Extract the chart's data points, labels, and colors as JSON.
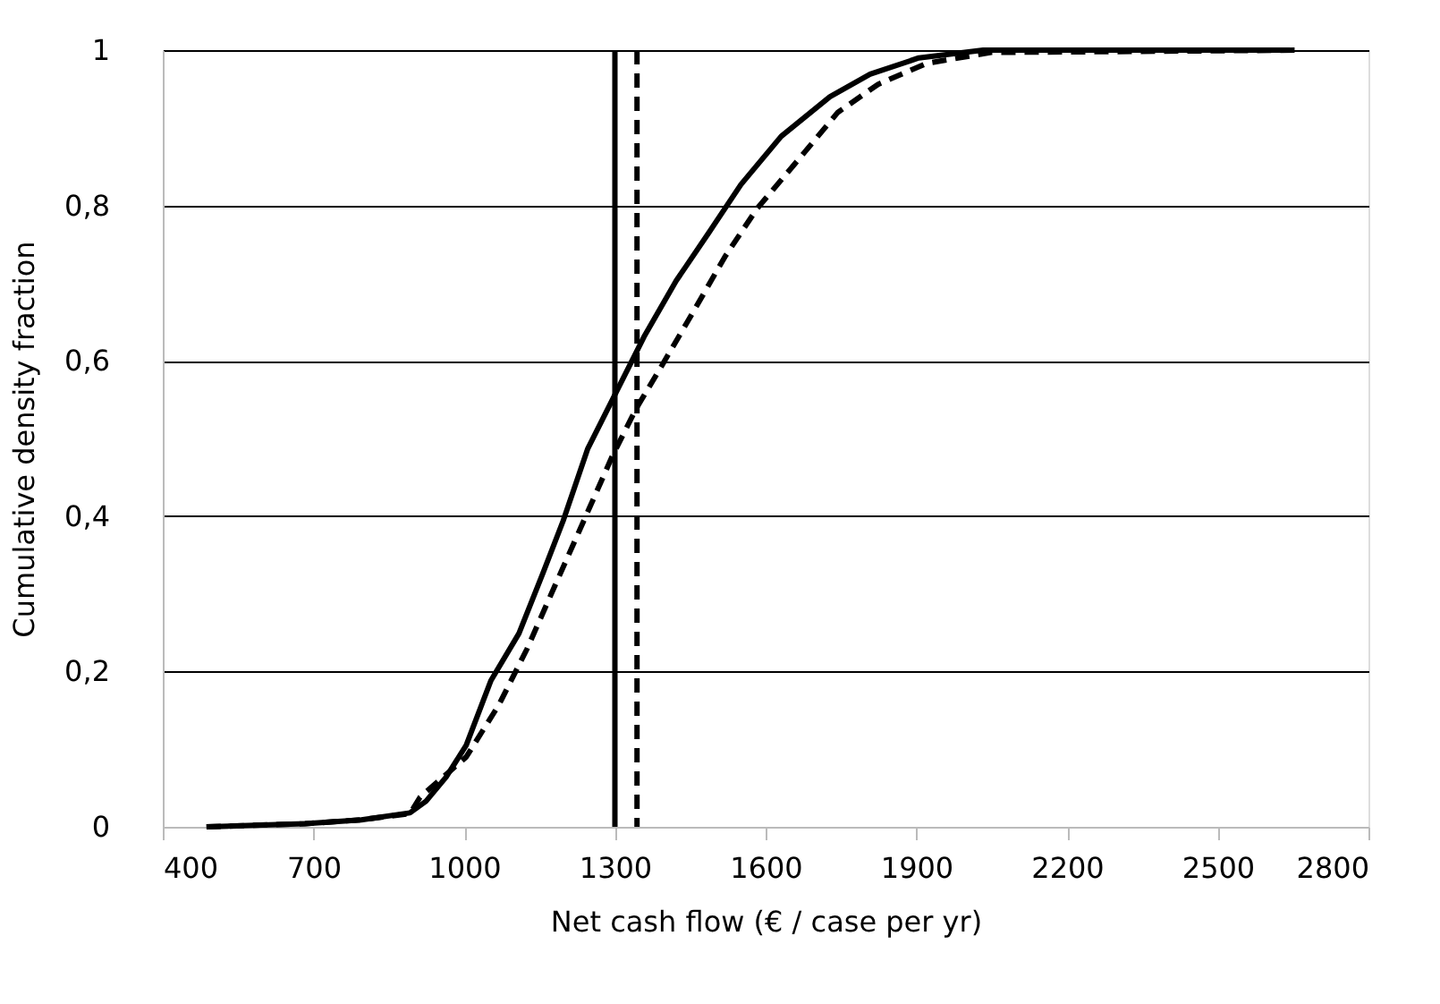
{
  "chart_data": {
    "type": "line",
    "xlabel": "Net cash flow (€ / case per yr)",
    "ylabel": "Cumulative density fraction",
    "xlim": [
      400,
      2800
    ],
    "xticks": [
      400,
      700,
      1000,
      1300,
      1600,
      1900,
      2200,
      2500,
      2800
    ],
    "ylim": [
      0,
      1
    ],
    "yticks": [
      0,
      {
        "value": 0.2,
        "label": "0,2"
      },
      {
        "value": 0.4,
        "label": "0,4"
      },
      {
        "value": 0.6,
        "label": "0,6"
      },
      {
        "value": 0.8,
        "label": "0,8"
      },
      1
    ],
    "grid": "y",
    "marker": "none",
    "series": [
      {
        "color": "#000000",
        "line_style": "solid",
        "x": [
          487,
          683,
          795,
          892,
          924,
          964,
          1004,
          1053,
          1109,
          1157,
          1197,
          1246,
          1302,
          1358,
          1422,
          1487,
          1551,
          1631,
          1728,
          1808,
          1905,
          2033,
          2290,
          2644
        ],
        "values": [
          0,
          0.004,
          0.009,
          0.018,
          0.033,
          0.064,
          0.105,
          0.188,
          0.249,
          0.327,
          0.394,
          0.487,
          0.559,
          0.631,
          0.703,
          0.765,
          0.827,
          0.889,
          0.94,
          0.969,
          0.99,
          1,
          1,
          1
        ]
      },
      {
        "color": "#000000",
        "line_style": "dashed",
        "x": [
          487,
          683,
          795,
          892,
          912,
          1004,
          1069,
          1125,
          1181,
          1238,
          1294,
          1342,
          1390,
          1455,
          1519,
          1583,
          1664,
          1744,
          1824,
          1921,
          2049,
          2290,
          2660
        ],
        "values": [
          0,
          0.004,
          0.009,
          0.017,
          0.038,
          0.09,
          0.157,
          0.229,
          0.311,
          0.394,
          0.476,
          0.538,
          0.59,
          0.662,
          0.734,
          0.796,
          0.858,
          0.92,
          0.956,
          0.983,
          0.997,
          0.998,
          1
        ]
      }
    ],
    "ref_lines": [
      {
        "axis": "x",
        "value": 1300,
        "color": "#000000",
        "line_style": "solid"
      },
      {
        "axis": "x",
        "value": 1344,
        "color": "#000000",
        "line_style": "dashed"
      }
    ]
  }
}
